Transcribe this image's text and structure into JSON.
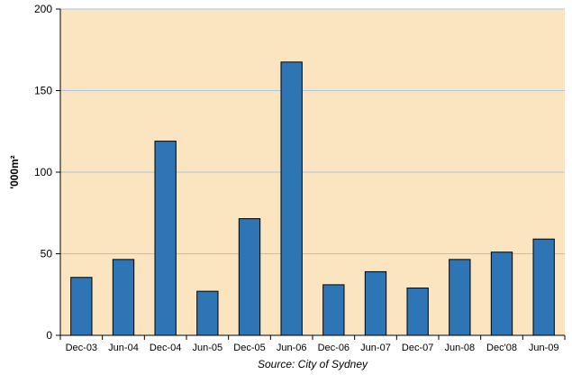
{
  "chart_data": {
    "type": "bar",
    "categories": [
      "Dec-03",
      "Jun-04",
      "Dec-04",
      "Jun-05",
      "Dec-05",
      "Jun-06",
      "Dec-06",
      "Jun-07",
      "Dec-07",
      "Jun-08",
      "Dec'08",
      "Jun-09"
    ],
    "values": [
      35.5,
      46.5,
      119,
      27,
      71.5,
      167.5,
      31,
      39,
      29,
      46.5,
      51,
      59
    ],
    "ylabel": "'000m²",
    "ylim": [
      0,
      200
    ],
    "yticks": [
      0,
      50,
      100,
      150,
      200
    ],
    "grid": true,
    "source": "Source: City of Sydney",
    "colors": {
      "plot_background": "#fbe5c0",
      "bar_fill": "#2e75b6",
      "bar_stroke": "#000000",
      "gridline": "#a9c4e0"
    }
  }
}
